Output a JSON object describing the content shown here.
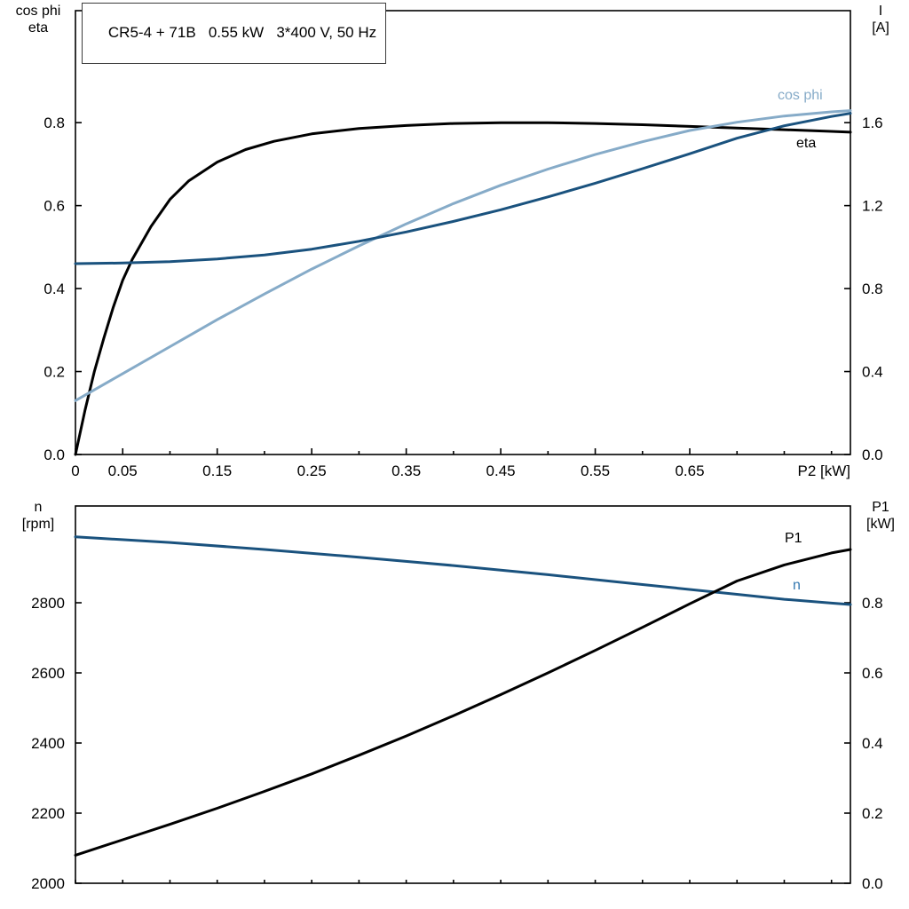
{
  "header": {
    "title": "CR5-4 + 71B   0.55 kW   3*400 V, 50 Hz"
  },
  "axes": {
    "top_left": {
      "line1": "cos phi",
      "line2": "eta"
    },
    "top_right": {
      "line1": "I",
      "line2": "[A]"
    },
    "bottom_left": {
      "line1": "n",
      "line2": "[rpm]"
    },
    "bottom_right": {
      "line1": "P1",
      "line2": "[kW]"
    }
  },
  "curve_labels": {
    "cos_phi": "cos phi",
    "eta": "eta",
    "p1": "P1",
    "n": "n"
  },
  "colors": {
    "black": "#000000",
    "dark_blue": "#1a527e",
    "light_blue": "#86abc8",
    "cos_phi_label": "#86abc8",
    "eta_label": "#000000",
    "p1_label": "#000000",
    "n_label": "#3579b1",
    "axis": "#000000",
    "background": "#ffffff"
  },
  "chart_data": [
    {
      "type": "line",
      "title": "CR5-4 + 71B   0.55 kW   3*400 V, 50 Hz",
      "x_axis": {
        "label": "P2 [kW]",
        "min": 0,
        "max": 0.82,
        "tick_values": [
          0,
          0.05,
          0.1,
          0.15,
          0.2,
          0.25,
          0.3,
          0.35,
          0.4,
          0.45,
          0.5,
          0.55,
          0.6,
          0.65,
          0.7,
          0.75,
          0.8
        ],
        "tick_labels": [
          "0",
          "0.05",
          "",
          "0.15",
          "",
          "0.25",
          "",
          "0.35",
          "",
          "0.45",
          "",
          "0.55",
          "",
          "0.65",
          "",
          "",
          ""
        ]
      },
      "y_left": {
        "label": "cos phi / eta",
        "min": 0,
        "max": 1.07,
        "tick_values": [
          0,
          0.2,
          0.4,
          0.6,
          0.8
        ],
        "tick_labels": [
          "0.0",
          "0.2",
          "0.4",
          "0.6",
          "0.8"
        ]
      },
      "y_right": {
        "label": "I [A]",
        "min": 0,
        "max": 2.14,
        "tick_values": [
          0,
          0.4,
          0.8,
          1.2,
          1.6
        ],
        "tick_labels": [
          "0.0",
          "0.4",
          "0.8",
          "1.2",
          "1.6"
        ]
      },
      "legend_position": "inline-right",
      "grid": false,
      "series": [
        {
          "name": "eta",
          "axis": "left",
          "color": "#000000",
          "x": [
            0,
            0.01,
            0.02,
            0.03,
            0.04,
            0.05,
            0.06,
            0.08,
            0.1,
            0.12,
            0.15,
            0.18,
            0.21,
            0.25,
            0.3,
            0.35,
            0.4,
            0.45,
            0.5,
            0.55,
            0.6,
            0.65,
            0.7,
            0.75,
            0.8,
            0.82
          ],
          "y": [
            0,
            0.105,
            0.2,
            0.28,
            0.355,
            0.42,
            0.47,
            0.55,
            0.615,
            0.66,
            0.705,
            0.735,
            0.755,
            0.773,
            0.786,
            0.793,
            0.798,
            0.8,
            0.8,
            0.798,
            0.795,
            0.791,
            0.787,
            0.783,
            0.779,
            0.777
          ]
        },
        {
          "name": "cos phi",
          "axis": "left",
          "color": "#86abc8",
          "x": [
            0,
            0.05,
            0.1,
            0.15,
            0.2,
            0.25,
            0.3,
            0.35,
            0.4,
            0.45,
            0.5,
            0.55,
            0.6,
            0.65,
            0.7,
            0.75,
            0.8,
            0.82
          ],
          "y": [
            0.13,
            0.195,
            0.26,
            0.325,
            0.387,
            0.447,
            0.503,
            0.556,
            0.605,
            0.649,
            0.688,
            0.723,
            0.754,
            0.781,
            0.801,
            0.816,
            0.826,
            0.829
          ]
        },
        {
          "name": "I",
          "axis": "right",
          "color": "#1a527e",
          "x": [
            0,
            0.05,
            0.1,
            0.15,
            0.2,
            0.25,
            0.3,
            0.35,
            0.4,
            0.45,
            0.5,
            0.55,
            0.6,
            0.65,
            0.7,
            0.75,
            0.8,
            0.82
          ],
          "y": [
            0.92,
            0.923,
            0.93,
            0.943,
            0.962,
            0.99,
            1.028,
            1.073,
            1.124,
            1.18,
            1.242,
            1.308,
            1.378,
            1.45,
            1.525,
            1.585,
            1.63,
            1.645
          ]
        }
      ]
    },
    {
      "type": "line",
      "title": "",
      "x_axis": {
        "label": "",
        "min": 0,
        "max": 0.82,
        "tick_values": [
          0,
          0.05,
          0.1,
          0.15,
          0.2,
          0.25,
          0.3,
          0.35,
          0.4,
          0.45,
          0.5,
          0.55,
          0.6,
          0.65,
          0.7,
          0.75,
          0.8
        ],
        "tick_labels": [
          "",
          "",
          "",
          "",
          "",
          "",
          "",
          "",
          "",
          "",
          "",
          "",
          "",
          "",
          "",
          "",
          ""
        ]
      },
      "y_left": {
        "label": "n [rpm]",
        "min": 2000,
        "max": 3076,
        "tick_values": [
          2000,
          2200,
          2400,
          2600,
          2800
        ],
        "tick_labels": [
          "2000",
          "2200",
          "2400",
          "2600",
          "2800"
        ]
      },
      "y_right": {
        "label": "P1 [kW]",
        "min": 0,
        "max": 1.076,
        "tick_values": [
          0,
          0.2,
          0.4,
          0.6,
          0.8
        ],
        "tick_labels": [
          "0.0",
          "0.2",
          "0.4",
          "0.6",
          "0.8"
        ]
      },
      "legend_position": "inline-right",
      "grid": false,
      "series": [
        {
          "name": "n",
          "axis": "left",
          "color": "#1a527e",
          "x": [
            0,
            0.1,
            0.2,
            0.3,
            0.4,
            0.5,
            0.6,
            0.7,
            0.75,
            0.8,
            0.82
          ],
          "y": [
            2988,
            2972,
            2952,
            2930,
            2906,
            2880,
            2852,
            2824,
            2810,
            2799,
            2795
          ]
        },
        {
          "name": "P1",
          "axis": "right",
          "color": "#000000",
          "x": [
            0,
            0.05,
            0.1,
            0.15,
            0.2,
            0.25,
            0.3,
            0.35,
            0.4,
            0.45,
            0.5,
            0.55,
            0.6,
            0.65,
            0.7,
            0.75,
            0.8,
            0.82
          ],
          "y": [
            0.08,
            0.124,
            0.168,
            0.214,
            0.262,
            0.312,
            0.365,
            0.42,
            0.478,
            0.538,
            0.6,
            0.664,
            0.73,
            0.797,
            0.862,
            0.908,
            0.942,
            0.952
          ]
        }
      ]
    }
  ]
}
